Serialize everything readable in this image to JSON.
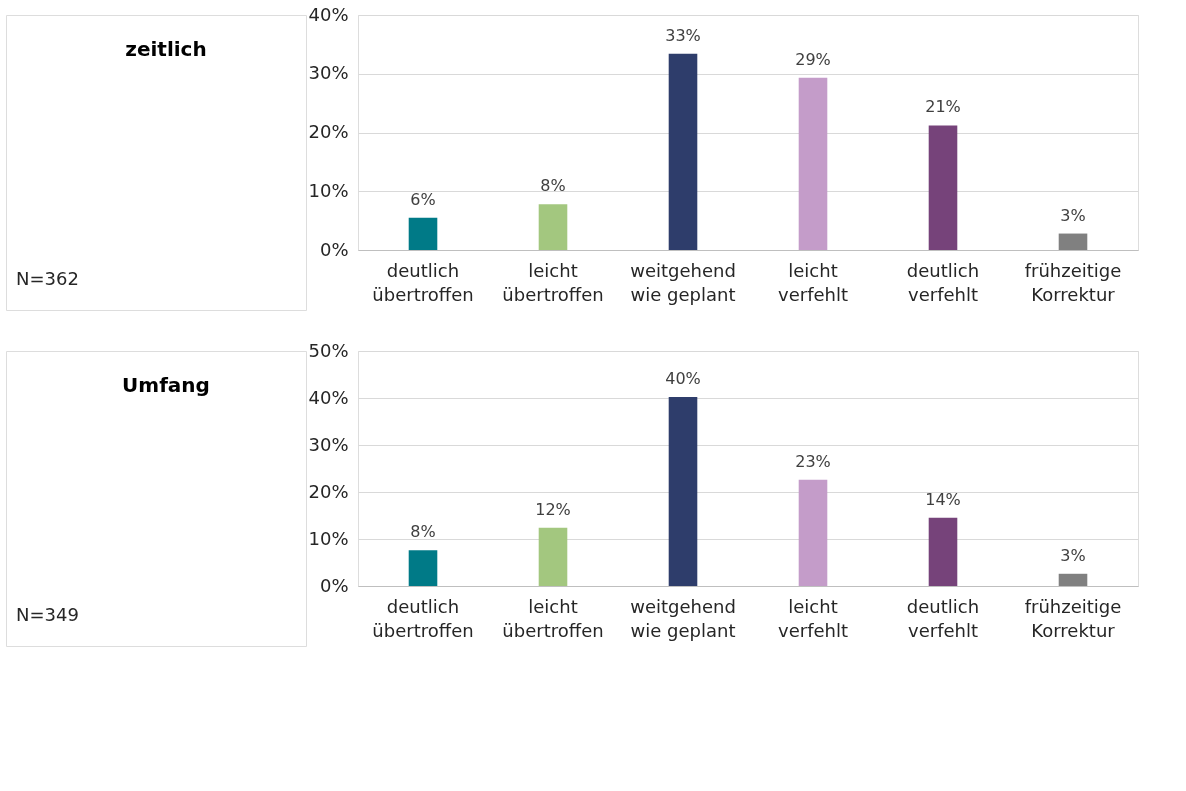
{
  "chart_data": [
    {
      "type": "bar",
      "title": "zeitlich",
      "annotations": [
        "N=362"
      ],
      "categories": [
        "deutlich\nübertroffen",
        "leicht\nübertroffen",
        "weitgehend\nwie geplant",
        "leicht\nverfehlt",
        "deutlich\nverfehlt",
        "frühzeitige\nKorrektur"
      ],
      "values": [
        5.5,
        7.8,
        33.4,
        29.3,
        21.2,
        2.8
      ],
      "value_labels": [
        "6%",
        "8%",
        "33%",
        "29%",
        "21%",
        "3%"
      ],
      "colors": [
        "#007a87",
        "#a3c77f",
        "#2e3d6b",
        "#c49cc9",
        "#76437a",
        "#808080"
      ],
      "ylim": [
        0,
        40
      ],
      "yticks": [
        {
          "value": 0,
          "label": "0%"
        },
        {
          "value": 10,
          "label": "10%"
        },
        {
          "value": 20,
          "label": "20%"
        },
        {
          "value": 30,
          "label": "30%"
        },
        {
          "value": 40,
          "label": "40%"
        }
      ],
      "grid": "y",
      "legend": false
    },
    {
      "type": "bar",
      "title": "Umfang",
      "annotations": [
        "N=349"
      ],
      "categories": [
        "deutlich\nübertroffen",
        "leicht\nübertroffen",
        "weitgehend\nwie geplant",
        "leicht\nverfehlt",
        "deutlich\nverfehlt",
        "frühzeitige\nKorrektur"
      ],
      "values": [
        7.6,
        12.4,
        40.2,
        22.6,
        14.5,
        2.6
      ],
      "value_labels": [
        "8%",
        "12%",
        "40%",
        "23%",
        "14%",
        "3%"
      ],
      "colors": [
        "#007a87",
        "#a3c77f",
        "#2e3d6b",
        "#c49cc9",
        "#76437a",
        "#808080"
      ],
      "ylim": [
        0,
        50
      ],
      "yticks": [
        {
          "value": 0,
          "label": "0%"
        },
        {
          "value": 10,
          "label": "10%"
        },
        {
          "value": 20,
          "label": "20%"
        },
        {
          "value": 30,
          "label": "30%"
        },
        {
          "value": 40,
          "label": "40%"
        },
        {
          "value": 50,
          "label": "50%"
        }
      ],
      "grid": "y",
      "legend": false
    }
  ]
}
